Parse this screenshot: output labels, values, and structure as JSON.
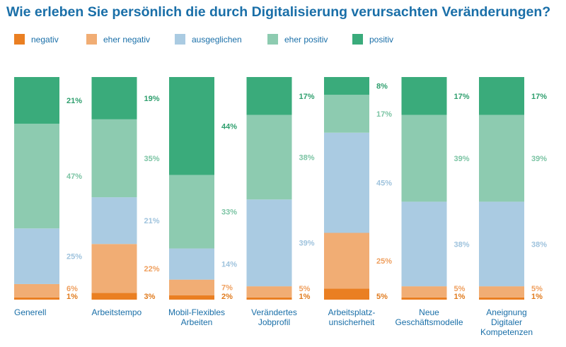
{
  "chart_data": {
    "type": "bar",
    "stacked": true,
    "percent": true,
    "title": "Wie erleben Sie persönlich die durch Digitalisierung verursachten Veränderungen?",
    "legend_position": "top",
    "grid": false,
    "ylim": [
      0,
      100
    ],
    "categories": [
      [
        "Generell"
      ],
      [
        "Arbeitstempo"
      ],
      [
        "Mobil-Flexibles",
        "Arbeiten"
      ],
      [
        "Verändertes",
        "Jobprofil"
      ],
      [
        "Arbeitsplatz-",
        "unsicherheit"
      ],
      [
        "Neue",
        "Geschäftsmodelle"
      ],
      [
        "Aneignung",
        "Digitaler",
        "Kompetenzen"
      ]
    ],
    "series": [
      {
        "name": "negativ",
        "color": "#ea7f22",
        "text_color": "#e07a1c",
        "values": [
          1,
          3,
          2,
          1,
          5,
          1,
          1
        ],
        "labels": [
          "1%",
          "3%",
          "2%",
          "1%",
          "5%",
          "1%",
          "1%"
        ]
      },
      {
        "name": "eher negativ",
        "color": "#f1ad74",
        "text_color": "#ef9f5e",
        "values": [
          6,
          22,
          7,
          5,
          25,
          5,
          5
        ],
        "labels": [
          "6%",
          "22%",
          "7%",
          "5%",
          "25%",
          "5%",
          "5%"
        ]
      },
      {
        "name": "ausgeglichen",
        "color": "#aacbe2",
        "text_color": "#9fc3dd",
        "values": [
          25,
          21,
          14,
          39,
          45,
          38,
          38
        ],
        "labels": [
          "25%",
          "21%",
          "14%",
          "39%",
          "45%",
          "38%",
          "38%"
        ]
      },
      {
        "name": "eher positiv",
        "color": "#8dcbb0",
        "text_color": "#7cc4a4",
        "values": [
          47,
          35,
          33,
          38,
          17,
          39,
          39
        ],
        "labels": [
          "47%",
          "35%",
          "33%",
          "38%",
          "17%",
          "39%",
          "39%"
        ]
      },
      {
        "name": "positiv",
        "color": "#3aab7b",
        "text_color": "#2f9f6e",
        "values": [
          21,
          19,
          44,
          17,
          8,
          17,
          17
        ],
        "labels": [
          "21%",
          "19%",
          "44%",
          "17%",
          "8%",
          "17%",
          "17%"
        ]
      }
    ]
  }
}
